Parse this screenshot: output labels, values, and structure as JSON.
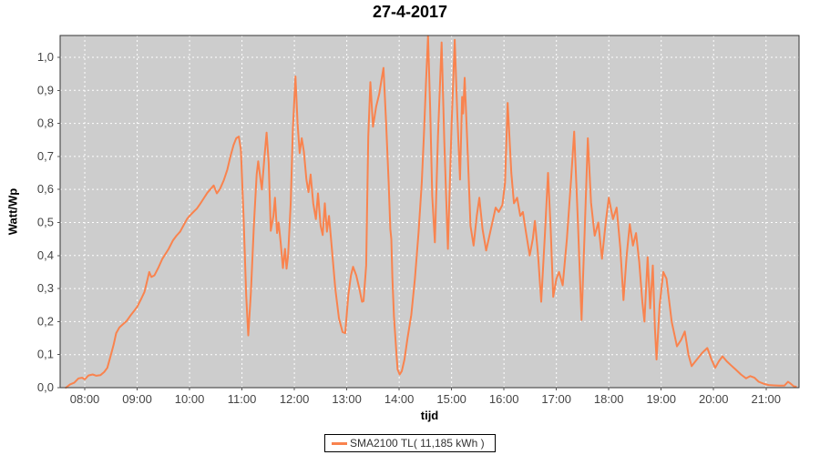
{
  "title": "27-4-2017",
  "legend": {
    "label": "SMA2100 TL( 11,185 kWh )"
  },
  "colors": {
    "line": "#f9834e",
    "plot_background": "#cdcdcd",
    "gridline": "#ffffff",
    "plot_border": "#333333",
    "tick_mark": "#555555",
    "tick_label": "#444444",
    "outer_background": "#ffffff"
  },
  "chart_data": {
    "type": "line",
    "title": "27-4-2017",
    "xlabel": "tijd",
    "ylabel": "Watt/Wp",
    "grid": true,
    "legend_position": "bottom",
    "xlim_hours": [
      7.53,
      21.63
    ],
    "ylim": [
      0,
      1.066
    ],
    "x_ticks": [
      {
        "v": 8,
        "label": "08:00"
      },
      {
        "v": 9,
        "label": "09:00"
      },
      {
        "v": 10,
        "label": "10:00"
      },
      {
        "v": 11,
        "label": "11:00"
      },
      {
        "v": 12,
        "label": "12:00"
      },
      {
        "v": 13,
        "label": "13:00"
      },
      {
        "v": 14,
        "label": "14:00"
      },
      {
        "v": 15,
        "label": "15:00"
      },
      {
        "v": 16,
        "label": "16:00"
      },
      {
        "v": 17,
        "label": "17:00"
      },
      {
        "v": 18,
        "label": "18:00"
      },
      {
        "v": 19,
        "label": "19:00"
      },
      {
        "v": 20,
        "label": "20:00"
      },
      {
        "v": 21,
        "label": "21:00"
      }
    ],
    "y_ticks": [
      {
        "v": 0.0,
        "label": "0,0"
      },
      {
        "v": 0.1,
        "label": "0,1"
      },
      {
        "v": 0.2,
        "label": "0,2"
      },
      {
        "v": 0.3,
        "label": "0,3"
      },
      {
        "v": 0.4,
        "label": "0,4"
      },
      {
        "v": 0.5,
        "label": "0,5"
      },
      {
        "v": 0.6,
        "label": "0,6"
      },
      {
        "v": 0.7,
        "label": "0,7"
      },
      {
        "v": 0.8,
        "label": "0,8"
      },
      {
        "v": 0.9,
        "label": "0,9"
      },
      {
        "v": 1.0,
        "label": "1,0"
      }
    ],
    "series": [
      {
        "name": "SMA2100 TL( 11,185 kWh )",
        "color": "#f9834e",
        "points": [
          [
            7.64,
            0
          ],
          [
            7.72,
            0.01
          ],
          [
            7.8,
            0.015
          ],
          [
            7.88,
            0.028
          ],
          [
            7.95,
            0.03
          ],
          [
            8,
            0.025
          ],
          [
            8.07,
            0.037
          ],
          [
            8.15,
            0.04
          ],
          [
            8.22,
            0.036
          ],
          [
            8.3,
            0.038
          ],
          [
            8.37,
            0.047
          ],
          [
            8.43,
            0.06
          ],
          [
            8.5,
            0.1
          ],
          [
            8.55,
            0.13
          ],
          [
            8.6,
            0.165
          ],
          [
            8.66,
            0.182
          ],
          [
            8.73,
            0.192
          ],
          [
            8.8,
            0.202
          ],
          [
            8.87,
            0.218
          ],
          [
            8.94,
            0.232
          ],
          [
            9,
            0.245
          ],
          [
            9.08,
            0.27
          ],
          [
            9.14,
            0.29
          ],
          [
            9.2,
            0.33
          ],
          [
            9.23,
            0.35
          ],
          [
            9.27,
            0.335
          ],
          [
            9.33,
            0.34
          ],
          [
            9.4,
            0.362
          ],
          [
            9.48,
            0.39
          ],
          [
            9.53,
            0.402
          ],
          [
            9.6,
            0.42
          ],
          [
            9.68,
            0.445
          ],
          [
            9.75,
            0.46
          ],
          [
            9.82,
            0.472
          ],
          [
            9.88,
            0.49
          ],
          [
            9.95,
            0.51
          ],
          [
            10,
            0.52
          ],
          [
            10.08,
            0.533
          ],
          [
            10.14,
            0.542
          ],
          [
            10.2,
            0.556
          ],
          [
            10.27,
            0.573
          ],
          [
            10.34,
            0.59
          ],
          [
            10.4,
            0.601
          ],
          [
            10.46,
            0.612
          ],
          [
            10.52,
            0.588
          ],
          [
            10.58,
            0.601
          ],
          [
            10.65,
            0.627
          ],
          [
            10.72,
            0.66
          ],
          [
            10.78,
            0.7
          ],
          [
            10.84,
            0.735
          ],
          [
            10.89,
            0.755
          ],
          [
            10.94,
            0.76
          ],
          [
            10.98,
            0.72
          ],
          [
            11.03,
            0.52
          ],
          [
            11.08,
            0.28
          ],
          [
            11.12,
            0.158
          ],
          [
            11.17,
            0.29
          ],
          [
            11.23,
            0.5
          ],
          [
            11.28,
            0.645
          ],
          [
            11.31,
            0.685
          ],
          [
            11.35,
            0.635
          ],
          [
            11.38,
            0.6
          ],
          [
            11.43,
            0.7
          ],
          [
            11.47,
            0.772
          ],
          [
            11.51,
            0.68
          ],
          [
            11.55,
            0.475
          ],
          [
            11.6,
            0.52
          ],
          [
            11.63,
            0.575
          ],
          [
            11.67,
            0.468
          ],
          [
            11.7,
            0.5
          ],
          [
            11.74,
            0.438
          ],
          [
            11.78,
            0.362
          ],
          [
            11.82,
            0.42
          ],
          [
            11.85,
            0.36
          ],
          [
            11.88,
            0.4
          ],
          [
            11.93,
            0.56
          ],
          [
            11.97,
            0.78
          ],
          [
            12.02,
            0.942
          ],
          [
            12.06,
            0.8
          ],
          [
            12.1,
            0.71
          ],
          [
            12.14,
            0.755
          ],
          [
            12.18,
            0.715
          ],
          [
            12.23,
            0.63
          ],
          [
            12.27,
            0.592
          ],
          [
            12.31,
            0.645
          ],
          [
            12.36,
            0.558
          ],
          [
            12.41,
            0.51
          ],
          [
            12.45,
            0.588
          ],
          [
            12.5,
            0.49
          ],
          [
            12.54,
            0.462
          ],
          [
            12.58,
            0.558
          ],
          [
            12.62,
            0.472
          ],
          [
            12.66,
            0.52
          ],
          [
            12.71,
            0.432
          ],
          [
            12.78,
            0.3
          ],
          [
            12.85,
            0.21
          ],
          [
            12.92,
            0.168
          ],
          [
            12.97,
            0.165
          ],
          [
            13.03,
            0.28
          ],
          [
            13.08,
            0.34
          ],
          [
            13.12,
            0.366
          ],
          [
            13.18,
            0.34
          ],
          [
            13.24,
            0.3
          ],
          [
            13.29,
            0.26
          ],
          [
            13.32,
            0.262
          ],
          [
            13.37,
            0.37
          ],
          [
            13.41,
            0.76
          ],
          [
            13.45,
            0.925
          ],
          [
            13.5,
            0.79
          ],
          [
            13.56,
            0.85
          ],
          [
            13.62,
            0.89
          ],
          [
            13.66,
            0.93
          ],
          [
            13.7,
            0.968
          ],
          [
            13.75,
            0.8
          ],
          [
            13.8,
            0.62
          ],
          [
            13.83,
            0.48
          ],
          [
            13.85,
            0.45
          ],
          [
            13.87,
            0.33
          ],
          [
            13.9,
            0.215
          ],
          [
            13.94,
            0.12
          ],
          [
            13.97,
            0.055
          ],
          [
            14.01,
            0.04
          ],
          [
            14.05,
            0.05
          ],
          [
            14.1,
            0.085
          ],
          [
            14.16,
            0.15
          ],
          [
            14.23,
            0.22
          ],
          [
            14.3,
            0.33
          ],
          [
            14.37,
            0.47
          ],
          [
            14.43,
            0.62
          ],
          [
            14.47,
            0.76
          ],
          [
            14.51,
            0.92
          ],
          [
            14.55,
            1.065
          ],
          [
            14.59,
            0.85
          ],
          [
            14.63,
            0.58
          ],
          [
            14.68,
            0.44
          ],
          [
            14.74,
            0.76
          ],
          [
            14.81,
            1.045
          ],
          [
            14.86,
            0.75
          ],
          [
            14.93,
            0.42
          ],
          [
            15,
            0.8
          ],
          [
            15.06,
            1.053
          ],
          [
            15.11,
            0.82
          ],
          [
            15.16,
            0.63
          ],
          [
            15.2,
            0.88
          ],
          [
            15.22,
            0.83
          ],
          [
            15.25,
            0.938
          ],
          [
            15.31,
            0.7
          ],
          [
            15.36,
            0.49
          ],
          [
            15.42,
            0.43
          ],
          [
            15.48,
            0.52
          ],
          [
            15.53,
            0.575
          ],
          [
            15.59,
            0.48
          ],
          [
            15.66,
            0.415
          ],
          [
            15.75,
            0.48
          ],
          [
            15.84,
            0.545
          ],
          [
            15.9,
            0.532
          ],
          [
            15.97,
            0.553
          ],
          [
            16.02,
            0.62
          ],
          [
            16.07,
            0.862
          ],
          [
            16.14,
            0.65
          ],
          [
            16.19,
            0.558
          ],
          [
            16.25,
            0.575
          ],
          [
            16.31,
            0.52
          ],
          [
            16.36,
            0.532
          ],
          [
            16.42,
            0.47
          ],
          [
            16.49,
            0.4
          ],
          [
            16.55,
            0.45
          ],
          [
            16.59,
            0.505
          ],
          [
            16.65,
            0.4
          ],
          [
            16.71,
            0.26
          ],
          [
            16.78,
            0.46
          ],
          [
            16.84,
            0.65
          ],
          [
            16.89,
            0.48
          ],
          [
            16.94,
            0.275
          ],
          [
            17,
            0.33
          ],
          [
            17.05,
            0.35
          ],
          [
            17.12,
            0.31
          ],
          [
            17.2,
            0.45
          ],
          [
            17.28,
            0.63
          ],
          [
            17.34,
            0.775
          ],
          [
            17.41,
            0.5
          ],
          [
            17.48,
            0.205
          ],
          [
            17.54,
            0.48
          ],
          [
            17.6,
            0.755
          ],
          [
            17.66,
            0.56
          ],
          [
            17.73,
            0.46
          ],
          [
            17.8,
            0.5
          ],
          [
            17.87,
            0.39
          ],
          [
            17.94,
            0.5
          ],
          [
            18,
            0.575
          ],
          [
            18.08,
            0.51
          ],
          [
            18.15,
            0.545
          ],
          [
            18.22,
            0.42
          ],
          [
            18.28,
            0.265
          ],
          [
            18.34,
            0.4
          ],
          [
            18.4,
            0.495
          ],
          [
            18.46,
            0.43
          ],
          [
            18.52,
            0.468
          ],
          [
            18.58,
            0.38
          ],
          [
            18.64,
            0.26
          ],
          [
            18.68,
            0.2
          ],
          [
            18.74,
            0.395
          ],
          [
            18.79,
            0.24
          ],
          [
            18.84,
            0.37
          ],
          [
            18.88,
            0.18
          ],
          [
            18.91,
            0.085
          ],
          [
            18.97,
            0.25
          ],
          [
            19.04,
            0.35
          ],
          [
            19.1,
            0.33
          ],
          [
            19.2,
            0.2
          ],
          [
            19.3,
            0.125
          ],
          [
            19.38,
            0.145
          ],
          [
            19.45,
            0.17
          ],
          [
            19.52,
            0.1
          ],
          [
            19.58,
            0.065
          ],
          [
            19.68,
            0.085
          ],
          [
            19.78,
            0.105
          ],
          [
            19.88,
            0.12
          ],
          [
            19.96,
            0.085
          ],
          [
            20.03,
            0.06
          ],
          [
            20.1,
            0.08
          ],
          [
            20.17,
            0.095
          ],
          [
            20.25,
            0.08
          ],
          [
            20.33,
            0.068
          ],
          [
            20.42,
            0.055
          ],
          [
            20.52,
            0.04
          ],
          [
            20.62,
            0.028
          ],
          [
            20.7,
            0.035
          ],
          [
            20.78,
            0.03
          ],
          [
            20.86,
            0.018
          ],
          [
            20.95,
            0.012
          ],
          [
            21.05,
            0.008
          ],
          [
            21.15,
            0.007
          ],
          [
            21.25,
            0.006
          ],
          [
            21.35,
            0.006
          ],
          [
            21.42,
            0.018
          ],
          [
            21.47,
            0.012
          ],
          [
            21.53,
            0.004
          ],
          [
            21.57,
            0.003
          ]
        ]
      }
    ]
  }
}
